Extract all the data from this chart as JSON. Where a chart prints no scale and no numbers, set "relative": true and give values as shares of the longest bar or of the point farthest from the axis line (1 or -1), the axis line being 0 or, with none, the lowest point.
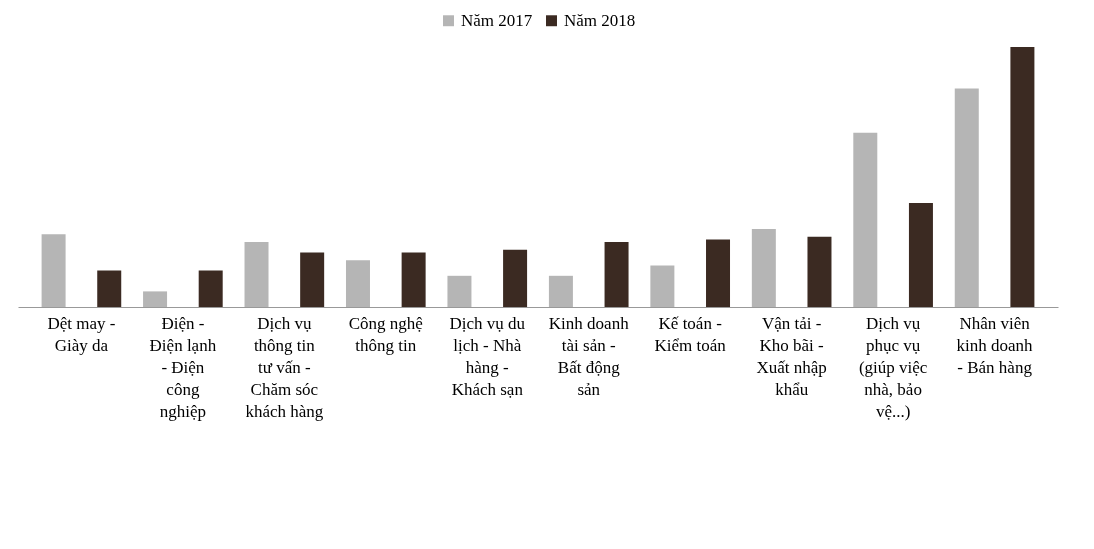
{
  "chart_data": {
    "type": "bar",
    "relative": true,
    "legend": "top",
    "categories": [
      "Dệt may - Giày da",
      "Điện - Điện lạnh - Điện công nghiệp",
      "Dịch vụ thông tin tư vấn - Chăm sóc khách hàng",
      "Công nghệ thông tin",
      "Dịch vụ du lịch - Nhà hàng - Khách sạn",
      "Kinh doanh tài sản - Bất động sản",
      "Kế toán - Kiểm toán",
      "Vận tải - Kho bãi - Xuất nhập khẩu",
      "Dịch vụ phục vụ (giúp việc nhà, bảo vệ...)",
      "Nhân viên kinh doanh - Bán hàng"
    ],
    "series": [
      {
        "name": "Năm 2017",
        "color": "#b5b5b5",
        "values": [
          0.28,
          0.06,
          0.25,
          0.18,
          0.12,
          0.12,
          0.16,
          0.3,
          0.67,
          0.84
        ]
      },
      {
        "name": "Năm 2018",
        "color": "#3b2a22",
        "values": [
          0.14,
          0.14,
          0.21,
          0.21,
          0.22,
          0.25,
          0.26,
          0.27,
          0.4,
          1
        ]
      }
    ]
  }
}
